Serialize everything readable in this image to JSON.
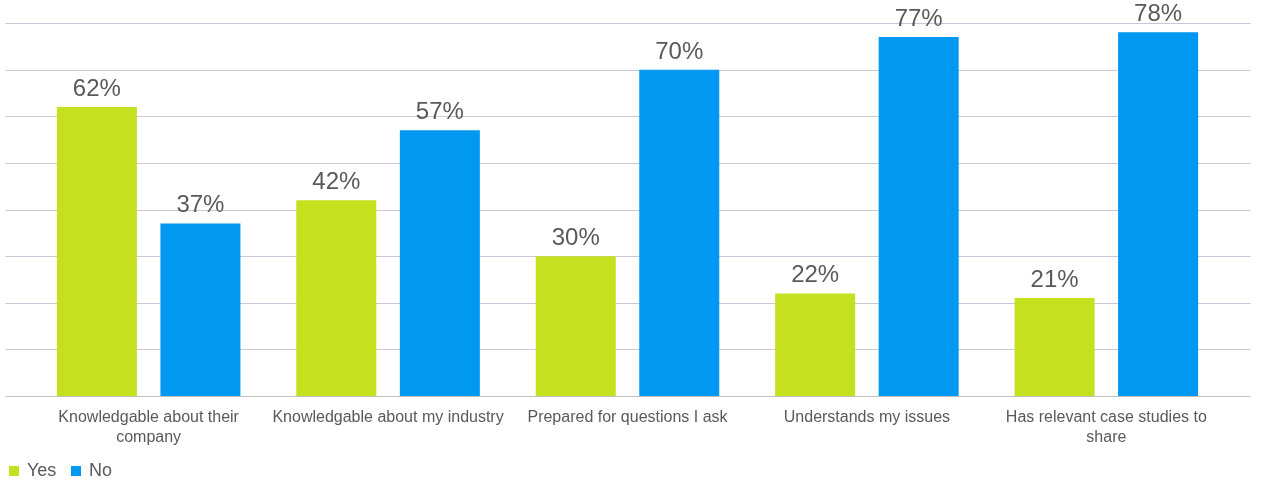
{
  "chart_data": {
    "type": "bar",
    "categories": [
      "Knowledgable about their company",
      "Knowledgable about my industry",
      "Prepared for questions I ask",
      "Understands my issues",
      "Has relevant case studies to share"
    ],
    "series": [
      {
        "name": "Yes",
        "color": "#c5e01e",
        "values": [
          62,
          42,
          30,
          22,
          21
        ],
        "value_labels": [
          "62%",
          "42%",
          "30%",
          "22%",
          "21%"
        ]
      },
      {
        "name": "No",
        "color": "#0098f0",
        "values": [
          37,
          57,
          70,
          77,
          78
        ],
        "value_labels": [
          "37%",
          "57%",
          "70%",
          "77%",
          "78%"
        ]
      }
    ],
    "grid": "y",
    "legend": "bottom",
    "tick_labels": "x"
  }
}
